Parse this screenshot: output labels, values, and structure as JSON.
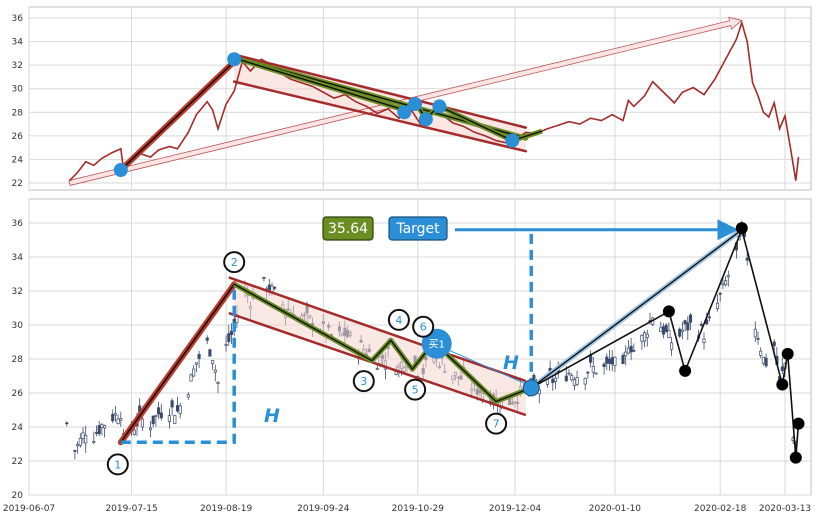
{
  "chart_data": [
    {
      "type": "line",
      "panel": "top",
      "ylim": [
        21.5,
        37
      ],
      "y_ticks": [
        "22",
        "24",
        "26",
        "28",
        "30",
        "32",
        "34",
        "36"
      ],
      "grid": true,
      "series": [
        {
          "role": "close-line",
          "color": "#a52a2a",
          "points": [
            [
              "2019-06-22",
              22.2
            ],
            [
              "2019-06-25",
              22.9
            ],
            [
              "2019-06-28",
              23.8
            ],
            [
              "2019-07-01",
              23.5
            ],
            [
              "2019-07-04",
              24.1
            ],
            [
              "2019-07-08",
              24.6
            ],
            [
              "2019-07-11",
              24.9
            ],
            [
              "2019-07-12",
              23.2
            ],
            [
              "2019-07-15",
              23.8
            ],
            [
              "2019-07-18",
              24.5
            ],
            [
              "2019-07-22",
              24.2
            ],
            [
              "2019-07-25",
              24.8
            ],
            [
              "2019-07-29",
              25.1
            ],
            [
              "2019-08-01",
              24.9
            ],
            [
              "2019-08-05",
              26.3
            ],
            [
              "2019-08-08",
              27.8
            ],
            [
              "2019-08-12",
              28.9
            ],
            [
              "2019-08-14",
              28.2
            ],
            [
              "2019-08-16",
              26.6
            ],
            [
              "2019-08-19",
              28.7
            ],
            [
              "2019-08-22",
              29.8
            ],
            [
              "2019-08-25",
              32.3
            ],
            [
              "2019-08-28",
              31.5
            ],
            [
              "2019-09-01",
              32.5
            ],
            [
              "2019-09-05",
              32.0
            ],
            [
              "2019-09-09",
              31.2
            ],
            [
              "2019-09-12",
              30.8
            ],
            [
              "2019-09-16",
              30.5
            ],
            [
              "2019-09-20",
              30.2
            ],
            [
              "2019-09-24",
              29.7
            ],
            [
              "2019-09-28",
              29.2
            ],
            [
              "2019-10-02",
              29.5
            ],
            [
              "2019-10-06",
              28.9
            ],
            [
              "2019-10-10",
              28.5
            ],
            [
              "2019-10-14",
              27.9
            ],
            [
              "2019-10-18",
              28.3
            ],
            [
              "2019-10-22",
              27.5
            ],
            [
              "2019-10-26",
              28.4
            ],
            [
              "2019-10-30",
              27.0
            ],
            [
              "2019-11-03",
              28.2
            ],
            [
              "2019-11-07",
              27.8
            ],
            [
              "2019-11-11",
              27.1
            ],
            [
              "2019-11-15",
              26.8
            ],
            [
              "2019-11-19",
              26.3
            ],
            [
              "2019-11-23",
              26.0
            ],
            [
              "2019-11-27",
              25.6
            ],
            [
              "2019-12-01",
              25.4
            ],
            [
              "2019-12-05",
              25.8
            ],
            [
              "2019-12-08",
              26.3
            ],
            [
              "2019-12-12",
              26.2
            ],
            [
              "2019-12-16",
              26.6
            ],
            [
              "2019-12-20",
              26.9
            ],
            [
              "2019-12-24",
              27.2
            ],
            [
              "2019-12-28",
              27.0
            ],
            [
              "2020-01-01",
              27.5
            ],
            [
              "2020-01-05",
              27.3
            ],
            [
              "2020-01-09",
              27.8
            ],
            [
              "2020-01-13",
              27.3
            ],
            [
              "2020-01-15",
              29.0
            ],
            [
              "2020-01-17",
              28.5
            ],
            [
              "2020-01-21",
              29.4
            ],
            [
              "2020-01-24",
              30.6
            ],
            [
              "2020-01-28",
              29.7
            ],
            [
              "2020-02-01",
              28.8
            ],
            [
              "2020-02-04",
              29.7
            ],
            [
              "2020-02-08",
              30.1
            ],
            [
              "2020-02-12",
              29.5
            ],
            [
              "2020-02-16",
              30.8
            ],
            [
              "2020-02-20",
              32.5
            ],
            [
              "2020-02-24",
              34.2
            ],
            [
              "2020-02-26",
              35.6
            ],
            [
              "2020-02-28",
              34.0
            ],
            [
              "2020-03-01",
              30.5
            ],
            [
              "2020-03-03",
              29.4
            ],
            [
              "2020-03-05",
              28.0
            ],
            [
              "2020-03-07",
              27.6
            ],
            [
              "2020-03-09",
              28.8
            ],
            [
              "2020-03-11",
              26.6
            ],
            [
              "2020-03-13",
              27.7
            ],
            [
              "2020-03-15",
              25.0
            ],
            [
              "2020-03-17",
              22.2
            ],
            [
              "2020-03-18",
              24.2
            ]
          ]
        }
      ],
      "segments": [
        {
          "from": [
            "2019-07-11",
            23.1
          ],
          "to": [
            "2019-08-22",
            32.3
          ],
          "color": "#c0392b",
          "width": 6
        },
        {
          "from": [
            "2019-07-11",
            23.1
          ],
          "to": [
            "2019-08-22",
            32.3
          ],
          "color": "#111111",
          "width": 1.6
        },
        {
          "from": [
            "2019-08-22",
            32.7
          ],
          "to": [
            "2019-12-08",
            25.8
          ],
          "color": "#6b8e23",
          "width": 5
        },
        {
          "from": [
            "2019-08-22",
            32.7
          ],
          "to": [
            "2019-12-08",
            25.8
          ],
          "color": "#111111",
          "width": 1.4
        },
        {
          "from": [
            "2019-08-22",
            30.6
          ],
          "to": [
            "2019-12-08",
            24.7
          ],
          "color": "#a52a2a",
          "width": 2.5
        },
        {
          "from": [
            "2019-08-22",
            32.9
          ],
          "to": [
            "2019-12-08",
            26.7
          ],
          "color": "#a52a2a",
          "width": 2.5
        }
      ],
      "arrow": {
        "from": [
          "2019-06-22",
          22.0
        ],
        "to": [
          "2020-02-26",
          35.8
        ],
        "color": "#e9a3a3"
      },
      "markers": [
        {
          "x": "2019-07-11",
          "y": 23.1
        },
        {
          "x": "2019-08-22",
          "y": 32.5
        },
        {
          "x": "2019-10-24",
          "y": 28.0
        },
        {
          "x": "2019-10-28",
          "y": 28.7
        },
        {
          "x": "2019-11-01",
          "y": 27.4
        },
        {
          "x": "2019-11-06",
          "y": 28.5
        },
        {
          "x": "2019-12-03",
          "y": 25.6
        }
      ]
    },
    {
      "type": "candlestick",
      "panel": "bottom",
      "ylim": [
        20,
        37.2
      ],
      "y_ticks": [
        "20",
        "22",
        "24",
        "26",
        "28",
        "30",
        "32",
        "34",
        "36"
      ],
      "x_ticks": [
        "2019-06-07",
        "2019-07-15",
        "2019-08-19",
        "2019-09-24",
        "2019-10-29",
        "2019-12-04",
        "2020-01-10",
        "2020-02-18",
        "2020-03-13"
      ],
      "grid": true,
      "annotations": {
        "value_box": "35.64",
        "target_box": "Target",
        "h_label": "H",
        "buy_label": "买1",
        "wave_labels": [
          "1",
          "2",
          "3",
          "4",
          "5",
          "6",
          "7"
        ]
      }
    }
  ]
}
